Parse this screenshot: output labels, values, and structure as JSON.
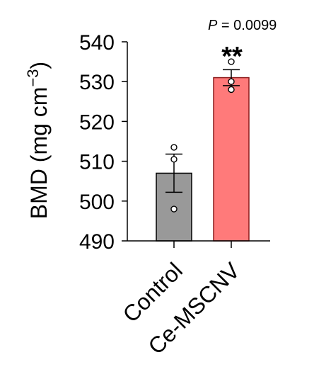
{
  "chart_data": {
    "type": "bar",
    "categories": [
      "Control",
      "Ce-MSCNV"
    ],
    "values": [
      507,
      531
    ],
    "errors": [
      4.8,
      2.0
    ],
    "points": [
      [
        498,
        510.5,
        513.5
      ],
      [
        528,
        530,
        535
      ]
    ],
    "colors": [
      "#999999",
      "#ff7a7a"
    ],
    "edge_colors": [
      "#000000",
      "#8b1a1a"
    ],
    "ylabel_main": "BMD (mg cm",
    "ylabel_sup": "−3",
    "ylabel_close": ")",
    "ylim": [
      490,
      540
    ],
    "yticks": [
      "490",
      "500",
      "510",
      "520",
      "530",
      "540"
    ],
    "annotation": {
      "p_label": "P",
      "p_text": " = 0.0099",
      "significance": "**"
    }
  }
}
